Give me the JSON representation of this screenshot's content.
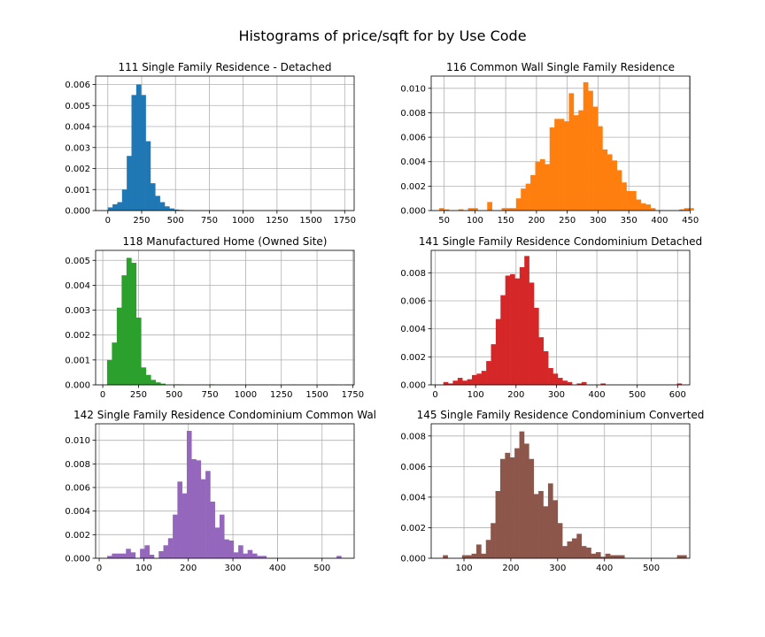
{
  "figure": {
    "title": "Histograms of price/sqft for by Use Code"
  },
  "chart_data": [
    {
      "type": "bar",
      "title": "111 Single Family Residence - Detached",
      "color": "#1f77b4",
      "xlim": [
        -90,
        1820
      ],
      "ylim": [
        0,
        0.0064
      ],
      "xticks": [
        0,
        250,
        500,
        750,
        1000,
        1250,
        1500,
        1750
      ],
      "yticks": [
        0,
        0.001,
        0.002,
        0.003,
        0.004,
        0.005,
        0.006
      ],
      "ytick_decimals": 3,
      "bin_start": 0,
      "bin_width": 35,
      "values": [
        0.00015,
        0.0003,
        0.0004,
        0.001,
        0.0026,
        0.0055,
        0.006,
        0.0055,
        0.0033,
        0.0013,
        0.0007,
        0.0004,
        0.0002,
        0.0001,
        5e-05,
        3e-05,
        2e-05,
        1e-05,
        1e-05,
        1e-05,
        1e-05,
        0,
        0,
        0,
        0,
        0,
        0,
        0,
        0,
        0,
        0,
        0,
        0,
        0,
        0,
        0,
        0,
        0,
        0,
        0,
        0,
        0,
        0,
        0,
        0,
        0,
        0,
        0,
        0,
        1e-05
      ]
    },
    {
      "type": "bar",
      "title": "116 Common Wall Single Family Residence",
      "color": "#ff7f0e",
      "xlim": [
        29,
        449
      ],
      "ylim": [
        0,
        0.011
      ],
      "xticks": [
        50,
        100,
        150,
        200,
        250,
        300,
        350,
        400,
        450
      ],
      "yticks": [
        0,
        0.002,
        0.004,
        0.006,
        0.008,
        0.01
      ],
      "ytick_decimals": 3,
      "bin_start": 42,
      "bin_width": 7.8,
      "values": [
        0.0002,
        0.0001,
        0,
        0,
        0.0001,
        0,
        0.0002,
        0.0002,
        0,
        0,
        0.0007,
        0,
        0,
        0.0002,
        0.0002,
        0.0002,
        0.001,
        0.0018,
        0.0022,
        0.0029,
        0.004,
        0.0042,
        0.0038,
        0.0068,
        0.0075,
        0.0075,
        0.0073,
        0.0096,
        0.0078,
        0.0082,
        0.0105,
        0.0098,
        0.0085,
        0.0069,
        0.005,
        0.0046,
        0.0041,
        0.0033,
        0.0023,
        0.0016,
        0.0016,
        0.0009,
        0.0006,
        0.0005,
        0.0002,
        0,
        0,
        0,
        0,
        0,
        0.0001,
        0.0002,
        0.0002
      ]
    },
    {
      "type": "bar",
      "title": "118 Manufactured Home (Owned Site)",
      "color": "#2ca02c",
      "xlim": [
        -50,
        1760
      ],
      "ylim": [
        0,
        0.0054
      ],
      "xticks": [
        0,
        250,
        500,
        750,
        1000,
        1250,
        1500,
        1750
      ],
      "yticks": [
        0,
        0.001,
        0.002,
        0.003,
        0.004,
        0.005
      ],
      "ytick_decimals": 3,
      "bin_start": 30,
      "bin_width": 34,
      "values": [
        0.001,
        0.0017,
        0.0031,
        0.0044,
        0.0051,
        0.0049,
        0.0027,
        0.0007,
        0.0004,
        0.0002,
        0.0001,
        5e-05,
        0,
        0,
        2e-05,
        1e-05,
        0,
        0,
        0,
        0,
        0,
        2e-05,
        0,
        0,
        0,
        0,
        0,
        0,
        0,
        0,
        0,
        0,
        1e-05,
        0,
        0,
        0,
        0,
        0,
        1e-05,
        0,
        0,
        0,
        0,
        0,
        0,
        0,
        1e-05,
        0,
        0,
        1e-05
      ]
    },
    {
      "type": "bar",
      "title": "141 Single Family Residence Condominium Detached",
      "color": "#d62728",
      "xlim": [
        -10,
        630
      ],
      "ylim": [
        0,
        0.0096
      ],
      "xticks": [
        0,
        100,
        200,
        300,
        400,
        500,
        600
      ],
      "yticks": [
        0,
        0.002,
        0.004,
        0.006,
        0.008
      ],
      "ytick_decimals": 3,
      "bin_start": 20,
      "bin_width": 11.8,
      "values": [
        0.0002,
        0.0001,
        0.0003,
        0.0005,
        0.0003,
        0.0004,
        0.0007,
        0.0008,
        0.001,
        0.0017,
        0.0029,
        0.0047,
        0.0064,
        0.0078,
        0.0079,
        0.0076,
        0.0084,
        0.0092,
        0.0073,
        0.0055,
        0.0034,
        0.0024,
        0.0012,
        0.0008,
        0.0005,
        0.0003,
        0.0002,
        0,
        0.0001,
        0.0002,
        0,
        0,
        0,
        0.0001,
        0,
        0,
        0,
        0,
        0,
        0,
        0,
        0,
        0,
        0,
        0,
        0,
        0,
        0,
        0,
        0.0001
      ]
    },
    {
      "type": "bar",
      "title": "142 Single Family Residence Condominium Common Wal",
      "color": "#9467bd",
      "xlim": [
        -8,
        572
      ],
      "ylim": [
        0,
        0.0114
      ],
      "xticks": [
        0,
        100,
        200,
        300,
        400,
        500
      ],
      "yticks": [
        0,
        0.002,
        0.004,
        0.006,
        0.008,
        0.01
      ],
      "ytick_decimals": 3,
      "bin_start": 18,
      "bin_width": 10.5,
      "values": [
        0.0002,
        0.0004,
        0.0004,
        0.0004,
        0.0008,
        0.0005,
        0,
        0.0008,
        0.0011,
        0.0003,
        0,
        0.0006,
        0.0011,
        0.0017,
        0.0037,
        0.0065,
        0.0055,
        0.0108,
        0.0084,
        0.0083,
        0.0067,
        0.0074,
        0.0048,
        0.0026,
        0.0037,
        0.0016,
        0.0015,
        0.0005,
        0.0011,
        0.0004,
        0.0007,
        0.0004,
        0.0002,
        0.0002,
        0,
        0,
        0,
        0,
        0,
        0,
        0,
        0,
        0,
        0,
        0,
        0,
        0,
        0,
        0,
        0.0002
      ]
    },
    {
      "type": "bar",
      "title": "145 Single Family Residence Condominium Converted",
      "color": "#8c564b",
      "xlim": [
        30,
        582
      ],
      "ylim": [
        0,
        0.0088
      ],
      "xticks": [
        100,
        200,
        300,
        400,
        500
      ],
      "yticks": [
        0,
        0.002,
        0.004,
        0.006,
        0.008
      ],
      "ytick_decimals": 3,
      "bin_start": 55,
      "bin_width": 10.2,
      "values": [
        0.0002,
        0,
        0,
        0,
        0.0002,
        0.0002,
        0.0003,
        0.0009,
        0.0003,
        0.0012,
        0.0023,
        0.0044,
        0.0065,
        0.0069,
        0.0066,
        0.0072,
        0.0083,
        0.0075,
        0.0065,
        0.0042,
        0.0044,
        0.0034,
        0.0049,
        0.0038,
        0.0023,
        0.0008,
        0.0011,
        0.0013,
        0.0016,
        0.0008,
        0.0007,
        0.0003,
        0.0004,
        0.0001,
        0.0003,
        0.0002,
        0.0002,
        0.0002,
        0,
        0,
        0,
        0,
        0,
        0,
        0,
        0,
        0,
        0,
        0,
        0.0002,
        0.0002
      ]
    }
  ]
}
